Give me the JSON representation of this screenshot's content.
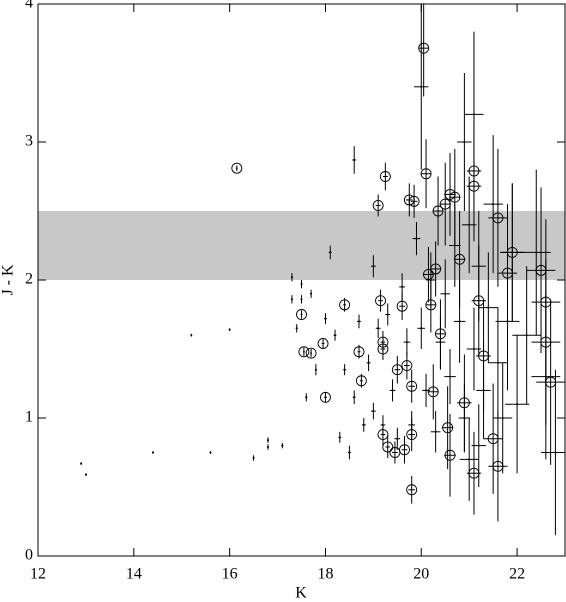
{
  "chart_data": {
    "type": "scatter",
    "xlabel": "K",
    "ylabel": "J - K",
    "xlim": [
      12,
      23
    ],
    "ylim": [
      0,
      4
    ],
    "xticks": [
      12,
      14,
      16,
      18,
      20,
      22
    ],
    "yticks": [
      0,
      1,
      2,
      3,
      4
    ],
    "band": [
      2.0,
      2.5
    ],
    "band_color": "#c8c8c8",
    "color": "#000000",
    "series": [
      {
        "marker": "dot",
        "x": [
          12.9,
          13.0,
          14.4,
          15.2,
          15.6,
          16.0,
          16.5,
          16.8,
          16.8,
          17.1,
          17.3,
          17.3,
          17.4,
          17.5,
          17.5,
          17.6,
          17.7,
          17.8,
          18.0,
          18.1,
          18.2,
          18.3,
          18.4,
          18.5,
          18.6,
          18.6,
          18.7,
          18.8,
          18.9,
          19.0,
          19.0,
          19.1,
          19.2,
          19.3,
          19.4,
          19.5,
          19.6,
          19.7,
          19.8,
          19.9,
          20.0,
          20.1,
          20.2,
          20.3,
          20.4,
          20.5,
          20.6,
          20.7,
          20.8,
          20.9,
          21.0,
          21.1,
          21.2,
          21.2,
          21.3,
          21.4,
          21.5,
          21.6,
          21.7,
          21.8,
          21.9,
          22.0,
          22.2,
          22.4,
          22.6,
          22.8,
          21.0,
          20.9,
          20.0,
          21.1
        ],
        "values": [
          0.67,
          0.59,
          0.75,
          1.6,
          0.75,
          1.64,
          0.71,
          0.84,
          0.79,
          0.8,
          2.02,
          1.86,
          1.65,
          1.97,
          1.86,
          1.15,
          1.9,
          1.35,
          1.72,
          2.2,
          1.6,
          0.86,
          1.35,
          0.75,
          2.87,
          1.15,
          1.7,
          0.95,
          1.4,
          2.1,
          1.05,
          1.65,
          0.95,
          1.75,
          1.2,
          0.85,
          1.95,
          1.55,
          0.95,
          2.3,
          1.65,
          1.2,
          2.0,
          0.9,
          1.55,
          1.9,
          1.3,
          2.25,
          1.7,
          1.0,
          2.4,
          1.5,
          0.8,
          2.1,
          1.2,
          1.8,
          2.55,
          1.4,
          1.0,
          1.7,
          2.2,
          1.1,
          1.6,
          2.2,
          1.3,
          0.75,
          0.7,
          3.0,
          3.4,
          3.2
        ],
        "xerr": [
          0,
          0,
          0,
          0,
          0,
          0,
          0.02,
          0.02,
          0.02,
          0.02,
          0.02,
          0.02,
          0.02,
          0.02,
          0.02,
          0.02,
          0.02,
          0.02,
          0.03,
          0.03,
          0.03,
          0.03,
          0.03,
          0.03,
          0.04,
          0.03,
          0.04,
          0.04,
          0.04,
          0.05,
          0.05,
          0.05,
          0.05,
          0.05,
          0.06,
          0.06,
          0.06,
          0.07,
          0.07,
          0.08,
          0.08,
          0.08,
          0.1,
          0.1,
          0.1,
          0.1,
          0.12,
          0.12,
          0.12,
          0.12,
          0.15,
          0.15,
          0.15,
          0.15,
          0.15,
          0.2,
          0.2,
          0.2,
          0.2,
          0.25,
          0.25,
          0.25,
          0.3,
          0.3,
          0.3,
          0.3,
          0.2,
          0.15,
          0.15,
          0.2
        ],
        "yerr": [
          0.01,
          0.01,
          0.01,
          0.01,
          0.01,
          0.01,
          0.02,
          0.02,
          0.02,
          0.02,
          0.03,
          0.03,
          0.03,
          0.03,
          0.03,
          0.03,
          0.03,
          0.04,
          0.04,
          0.05,
          0.04,
          0.04,
          0.04,
          0.05,
          0.1,
          0.05,
          0.05,
          0.05,
          0.06,
          0.08,
          0.06,
          0.07,
          0.07,
          0.08,
          0.08,
          0.08,
          0.1,
          0.1,
          0.1,
          0.12,
          0.15,
          0.12,
          0.2,
          0.15,
          0.2,
          0.25,
          0.2,
          0.3,
          0.3,
          0.25,
          0.35,
          0.3,
          0.3,
          0.4,
          0.35,
          0.4,
          0.5,
          0.4,
          0.4,
          0.5,
          0.5,
          0.5,
          0.5,
          0.6,
          0.6,
          0.6,
          0.3,
          0.5,
          0.6,
          0.6
        ]
      },
      {
        "marker": "circle",
        "x": [
          16.15,
          17.5,
          17.55,
          17.7,
          17.95,
          18.0,
          18.4,
          18.7,
          18.75,
          19.1,
          19.15,
          19.2,
          19.2,
          19.2,
          19.25,
          19.3,
          19.45,
          19.5,
          19.6,
          19.65,
          19.7,
          19.75,
          19.8,
          19.8,
          19.8,
          19.85,
          20.05,
          20.1,
          20.15,
          20.2,
          20.25,
          20.3,
          20.35,
          20.4,
          20.5,
          20.55,
          20.6,
          20.6,
          20.7,
          20.8,
          20.9,
          21.1,
          21.1,
          21.1,
          21.2,
          21.3,
          21.5,
          21.6,
          21.6,
          21.8,
          21.9,
          22.5,
          22.6,
          22.6,
          22.7
        ],
        "values": [
          2.81,
          1.75,
          1.48,
          1.47,
          1.54,
          1.15,
          1.82,
          1.48,
          1.27,
          2.54,
          1.85,
          1.55,
          1.5,
          0.88,
          2.75,
          0.79,
          0.75,
          1.35,
          1.81,
          0.77,
          1.38,
          2.58,
          0.48,
          1.23,
          0.88,
          2.57,
          3.68,
          2.77,
          2.04,
          1.82,
          1.19,
          2.08,
          2.5,
          1.61,
          2.55,
          0.93,
          2.62,
          0.73,
          2.6,
          2.15,
          1.11,
          2.79,
          2.68,
          0.6,
          1.85,
          1.45,
          0.85,
          2.45,
          0.65,
          2.05,
          2.2,
          2.07,
          1.84,
          1.55,
          1.26
        ],
        "xerr": [
          0.02,
          0.02,
          0.02,
          0.02,
          0.03,
          0.03,
          0.03,
          0.03,
          0.03,
          0.05,
          0.05,
          0.05,
          0.05,
          0.05,
          0.05,
          0.05,
          0.06,
          0.06,
          0.06,
          0.06,
          0.06,
          0.07,
          0.07,
          0.07,
          0.07,
          0.07,
          0.1,
          0.1,
          0.1,
          0.1,
          0.1,
          0.1,
          0.1,
          0.1,
          0.12,
          0.12,
          0.12,
          0.12,
          0.12,
          0.12,
          0.15,
          0.15,
          0.15,
          0.15,
          0.15,
          0.15,
          0.2,
          0.2,
          0.2,
          0.2,
          0.25,
          0.3,
          0.3,
          0.3,
          0.3
        ],
        "yerr": [
          0.02,
          0.03,
          0.03,
          0.03,
          0.04,
          0.04,
          0.05,
          0.05,
          0.05,
          0.08,
          0.08,
          0.08,
          0.08,
          0.08,
          0.1,
          0.08,
          0.08,
          0.1,
          0.1,
          0.1,
          0.1,
          0.12,
          0.1,
          0.12,
          0.12,
          0.12,
          0.35,
          0.25,
          0.2,
          0.2,
          0.2,
          0.2,
          0.25,
          0.25,
          0.3,
          0.3,
          0.3,
          0.3,
          0.35,
          0.35,
          0.35,
          0.4,
          0.4,
          0.3,
          0.4,
          0.4,
          0.4,
          0.5,
          0.4,
          0.5,
          0.5,
          0.6,
          0.6,
          0.6,
          0.6
        ]
      }
    ]
  }
}
